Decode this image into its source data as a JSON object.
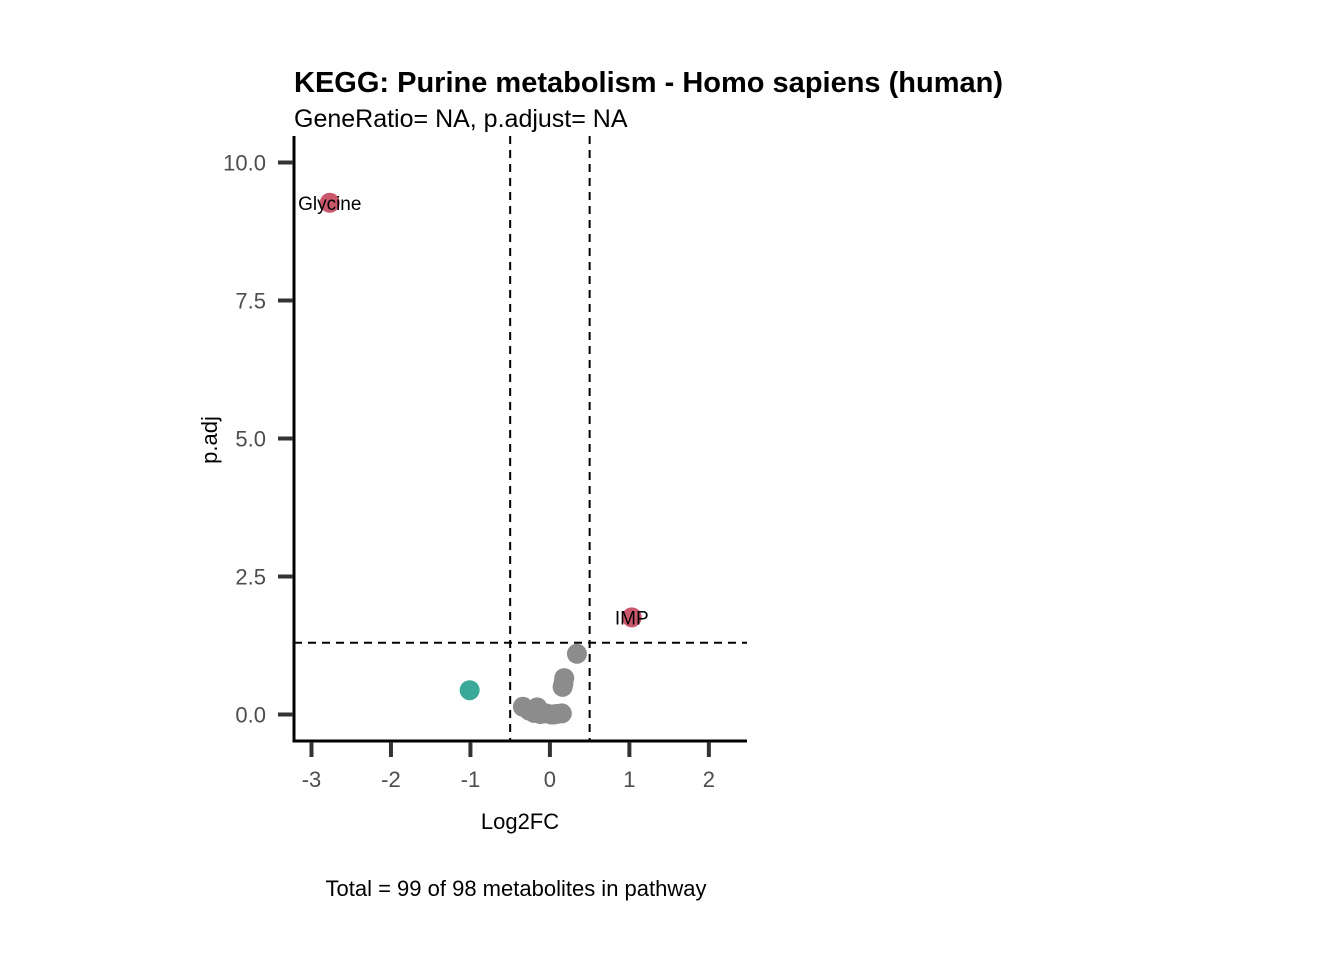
{
  "chart_data": {
    "type": "scatter",
    "title": "KEGG: Purine metabolism - Homo sapiens (human)",
    "subtitle": "GeneRatio= NA, p.adjust= NA",
    "xlabel": "Log2FC",
    "ylabel": "p.adj",
    "caption": "Total = 99 of 98 metabolites in pathway",
    "xlim": [
      -3.22,
      2.48
    ],
    "ylim": [
      -0.48,
      10.48
    ],
    "x_ticks": [
      -3,
      -2,
      -1,
      0,
      1,
      2
    ],
    "x_tick_labels": [
      "-3",
      "-2",
      "-1",
      "0",
      "1",
      "2"
    ],
    "y_ticks": [
      0,
      2.5,
      5,
      7.5,
      10
    ],
    "y_tick_labels": [
      "0.0",
      "2.5",
      "5.0",
      "7.5",
      "10.0"
    ],
    "vlines": [
      -0.5,
      0.5
    ],
    "hline": 1.3,
    "grid": false,
    "colors": {
      "up": "#c9586d",
      "down": "#3aa99a",
      "ns": "#8c8c8c"
    },
    "points": [
      {
        "x": -2.77,
        "y": 9.27,
        "group": "up",
        "label": "Glycine"
      },
      {
        "x": 1.03,
        "y": 1.76,
        "group": "up",
        "label": "IMP"
      },
      {
        "x": -1.01,
        "y": 0.44,
        "group": "down"
      },
      {
        "x": 0.34,
        "y": 1.1,
        "group": "ns"
      },
      {
        "x": 0.18,
        "y": 0.66,
        "group": "ns"
      },
      {
        "x": 0.17,
        "y": 0.56,
        "group": "ns"
      },
      {
        "x": 0.16,
        "y": 0.5,
        "group": "ns"
      },
      {
        "x": -0.34,
        "y": 0.14,
        "group": "ns"
      },
      {
        "x": -0.16,
        "y": 0.13,
        "group": "ns"
      },
      {
        "x": -0.26,
        "y": 0.07,
        "group": "ns"
      },
      {
        "x": -0.2,
        "y": 0.03,
        "group": "ns"
      },
      {
        "x": -0.12,
        "y": 0.01,
        "group": "ns"
      },
      {
        "x": -0.05,
        "y": 0.02,
        "group": "ns"
      },
      {
        "x": 0.02,
        "y": 0.0,
        "group": "ns"
      },
      {
        "x": 0.08,
        "y": 0.01,
        "group": "ns"
      },
      {
        "x": 0.15,
        "y": 0.02,
        "group": "ns"
      },
      {
        "x": 0.05,
        "y": 0.0,
        "group": "ns"
      }
    ]
  }
}
